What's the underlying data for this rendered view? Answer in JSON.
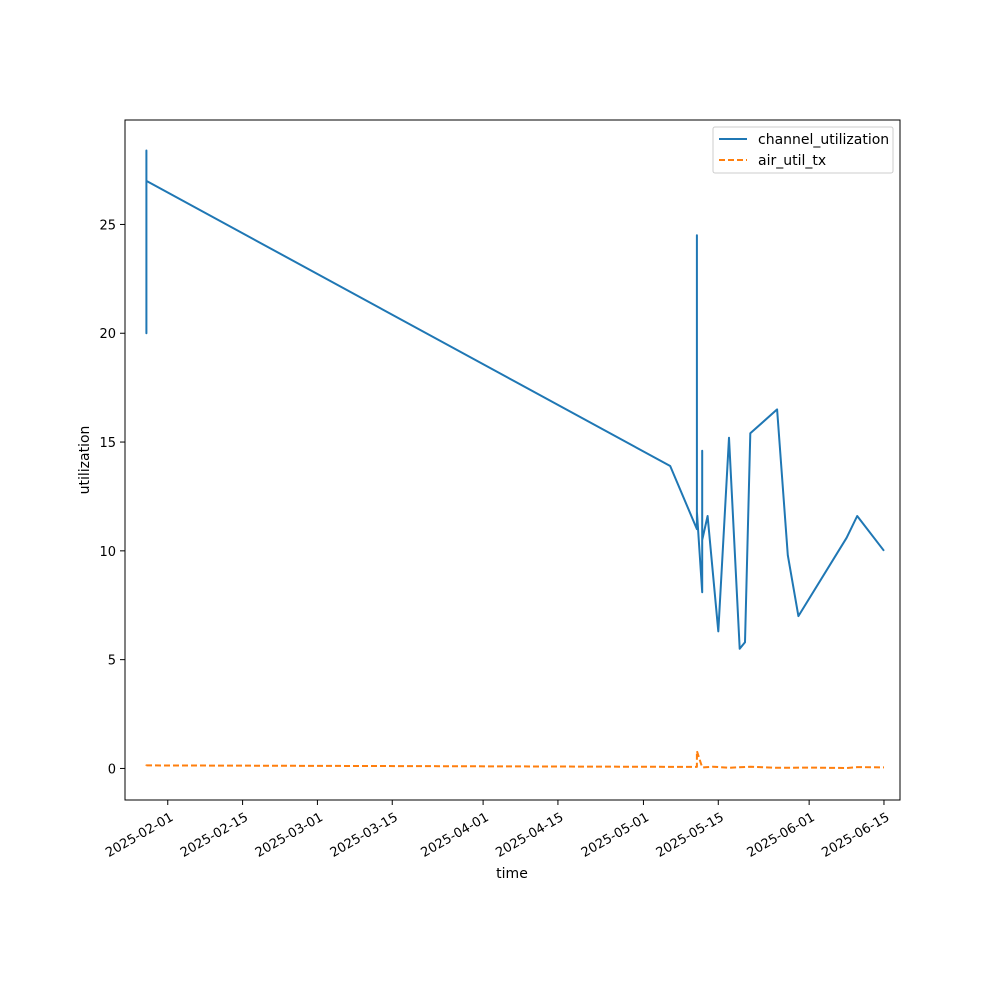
{
  "chart_data": {
    "type": "line",
    "title": "",
    "xlabel": "time",
    "ylabel": "utilization",
    "xlim": [
      "2025-01-24",
      "2025-06-18"
    ],
    "ylim": [
      -1.45,
      29.8
    ],
    "x_ticks": [
      "2025-02-01",
      "2025-02-15",
      "2025-03-01",
      "2025-03-15",
      "2025-04-01",
      "2025-04-15",
      "2025-05-01",
      "2025-05-15",
      "2025-06-01",
      "2025-06-15"
    ],
    "y_ticks": [
      0,
      5,
      10,
      15,
      20,
      25
    ],
    "grid": false,
    "legend_position": "top-right",
    "series": [
      {
        "name": "channel_utilization",
        "color": "#1f77b4",
        "linestyle": "solid",
        "points": [
          [
            "2025-01-28",
            20.1
          ],
          [
            "2025-01-28",
            28.4
          ],
          [
            "2025-01-28",
            20.0
          ],
          [
            "2025-01-28",
            27.0
          ],
          [
            "2025-05-06",
            13.9
          ],
          [
            "2025-05-11",
            11.0
          ],
          [
            "2025-05-11",
            24.5
          ],
          [
            "2025-05-11",
            11.8
          ],
          [
            "2025-05-12",
            8.1
          ],
          [
            "2025-05-12",
            14.6
          ],
          [
            "2025-05-12",
            10.5
          ],
          [
            "2025-05-13",
            11.6
          ],
          [
            "2025-05-15",
            6.3
          ],
          [
            "2025-05-17",
            15.2
          ],
          [
            "2025-05-19",
            5.5
          ],
          [
            "2025-05-20",
            5.8
          ],
          [
            "2025-05-21",
            15.4
          ],
          [
            "2025-05-26",
            16.5
          ],
          [
            "2025-05-28",
            9.8
          ],
          [
            "2025-05-30",
            7.0
          ],
          [
            "2025-06-08",
            10.6
          ],
          [
            "2025-06-10",
            11.6
          ],
          [
            "2025-06-15",
            10.0
          ]
        ]
      },
      {
        "name": "air_util_tx",
        "color": "#ff7f0e",
        "linestyle": "dashed",
        "points": [
          [
            "2025-01-28",
            0.12
          ],
          [
            "2025-01-28",
            0.14
          ],
          [
            "2025-05-11",
            0.07
          ],
          [
            "2025-05-11",
            0.8
          ],
          [
            "2025-05-12",
            0.05
          ],
          [
            "2025-05-14",
            0.08
          ],
          [
            "2025-05-17",
            0.03
          ],
          [
            "2025-05-21",
            0.08
          ],
          [
            "2025-05-26",
            0.03
          ],
          [
            "2025-06-01",
            0.04
          ],
          [
            "2025-06-08",
            0.02
          ],
          [
            "2025-06-10",
            0.06
          ],
          [
            "2025-06-15",
            0.05
          ]
        ]
      }
    ]
  }
}
